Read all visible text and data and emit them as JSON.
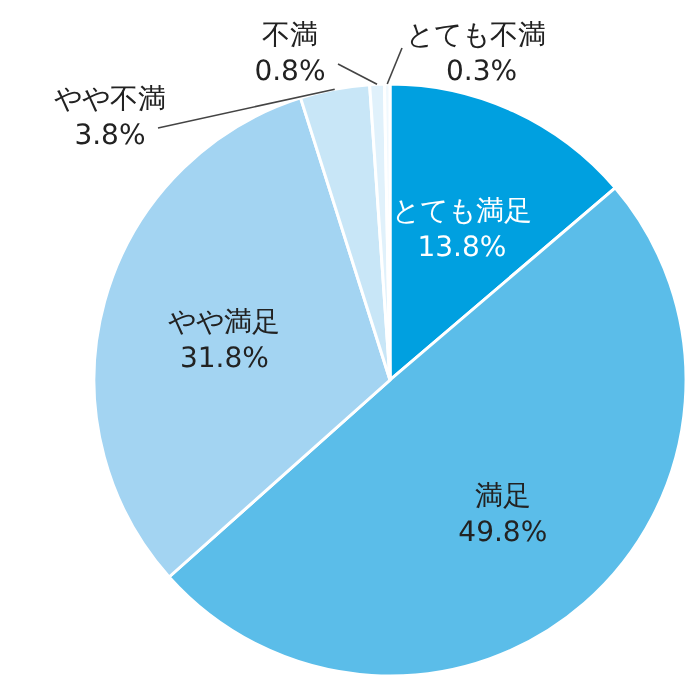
{
  "chart_data": {
    "type": "pie",
    "categories": [
      "とても満足",
      "満足",
      "やや満足",
      "やや不満",
      "不満",
      "とても不満"
    ],
    "values": [
      13.8,
      49.8,
      31.8,
      3.8,
      0.8,
      0.3
    ],
    "colors": [
      "#00a0e0",
      "#5bbde9",
      "#a3d4f2",
      "#c8e6f7",
      "#e0f1fb",
      "#f0f9fe"
    ],
    "value_labels": [
      "13.8%",
      "49.8%",
      "31.8%",
      "3.8%",
      "0.8%",
      "0.3%"
    ]
  }
}
